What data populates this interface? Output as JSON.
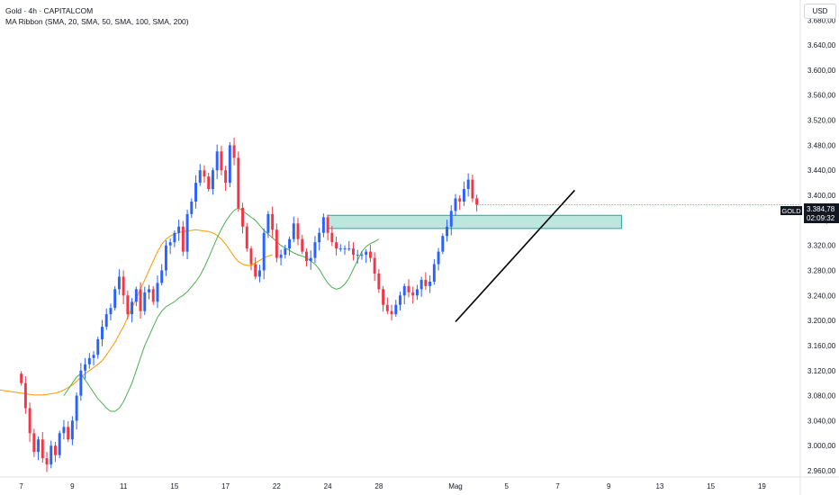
{
  "header": {
    "title": "Gold · 4h · CAPITALCOM",
    "indicator": "MA Ribbon (SMA, 20, SMA, 50, SMA, 100, SMA, 200)",
    "currency": "USD"
  },
  "price_tag": {
    "symbol": "GOLD",
    "price": "3.384,78",
    "countdown": "02:09:32"
  },
  "colors": {
    "up": "#2962ff",
    "down": "#f23645",
    "ma_fast": "#4caf50",
    "ma_slow": "#ff9800",
    "zone_fill": "#a5dfd3",
    "zone_border": "#26a69a",
    "trendline": "#000000"
  },
  "chart_data": {
    "type": "candlestick",
    "title": "Gold · 4h · CAPITALCOM",
    "y_ticks": [
      "3.680,00",
      "3.640,00",
      "3.600,00",
      "3.560,00",
      "3.520,00",
      "3.480,00",
      "3.440,00",
      "3.400,00",
      "3.360,00",
      "3.320,00",
      "3.280,00",
      "3.240,00",
      "3.200,00",
      "3.160,00",
      "3.120,00",
      "3.080,00",
      "3.040,00",
      "3.000,00",
      "2.960,00"
    ],
    "y_tick_values": [
      3680,
      3640,
      3600,
      3560,
      3520,
      3480,
      3440,
      3400,
      3360,
      3320,
      3280,
      3240,
      3200,
      3160,
      3120,
      3080,
      3040,
      3000,
      2960
    ],
    "ylim": [
      2950,
      3712
    ],
    "x_ticks": [
      "7",
      "9",
      "11",
      "15",
      "17",
      "22",
      "24",
      "28",
      "Mag",
      "5",
      "7",
      "9",
      "13",
      "15",
      "19"
    ],
    "x_tick_index": [
      0,
      12,
      24,
      36,
      48,
      60,
      72,
      84,
      102,
      114,
      126,
      138,
      150,
      162,
      174
    ],
    "x_range": [
      -5,
      183
    ],
    "closes": [
      3100,
      3060,
      3020,
      2990,
      3010,
      2980,
      2970,
      3000,
      2985,
      3020,
      3030,
      3010,
      3040,
      3080,
      3120,
      3130,
      3140,
      3145,
      3170,
      3190,
      3210,
      3220,
      3250,
      3270,
      3240,
      3210,
      3230,
      3250,
      3215,
      3245,
      3250,
      3230,
      3260,
      3280,
      3320,
      3325,
      3340,
      3350,
      3310,
      3370,
      3390,
      3420,
      3440,
      3430,
      3410,
      3440,
      3470,
      3440,
      3420,
      3480,
      3460,
      3380,
      3350,
      3315,
      3290,
      3270,
      3280,
      3340,
      3370,
      3345,
      3300,
      3305,
      3315,
      3330,
      3355,
      3330,
      3310,
      3295,
      3300,
      3325,
      3340,
      3365,
      3340,
      3325,
      3315,
      3315,
      3315,
      3315,
      3305,
      3305,
      3305,
      3310,
      3300,
      3275,
      3250,
      3225,
      3215,
      3210,
      3225,
      3240,
      3255,
      3245,
      3240,
      3250,
      3265,
      3255,
      3262,
      3290,
      3310,
      3335,
      3350,
      3375,
      3395,
      3390,
      3410,
      3425,
      3395,
      3385
    ],
    "ma_fast": [
      3080,
      3090,
      3100,
      3110,
      3115,
      3105,
      3095,
      3085,
      3075,
      3068,
      3060,
      3055,
      3055,
      3060,
      3070,
      3085,
      3100,
      3120,
      3140,
      3160,
      3175,
      3190,
      3205,
      3215,
      3222,
      3226,
      3230,
      3236,
      3240,
      3246,
      3254,
      3262,
      3272,
      3285,
      3300,
      3316,
      3332,
      3346,
      3358,
      3368,
      3376,
      3380,
      3375,
      3370,
      3365,
      3360,
      3352,
      3344,
      3338,
      3332,
      3326,
      3320,
      3316,
      3312,
      3308,
      3305,
      3303,
      3300,
      3295,
      3290,
      3282,
      3270,
      3260,
      3253,
      3250,
      3252,
      3258,
      3268,
      3282,
      3296,
      3310,
      3318,
      3323,
      3326,
      3330
    ],
    "ma_fast_start": 10,
    "ma_slow": [
      3093,
      3093,
      3092,
      3091,
      3090,
      3089,
      3088,
      3087,
      3086,
      3085,
      3084,
      3083,
      3082,
      3081,
      3081,
      3081,
      3082,
      3083,
      3084,
      3086,
      3089,
      3093,
      3097,
      3103,
      3109,
      3115,
      3120,
      3125,
      3130,
      3136,
      3145,
      3155,
      3165,
      3178,
      3190,
      3205,
      3220,
      3235,
      3250,
      3265,
      3280,
      3295,
      3310,
      3322,
      3330,
      3335,
      3338,
      3340,
      3342,
      3343,
      3344,
      3345,
      3344,
      3343,
      3342,
      3340,
      3336,
      3330,
      3322,
      3312,
      3302,
      3294,
      3290,
      3288,
      3288,
      3292,
      3296,
      3300,
      3303,
      3305
    ],
    "ma_slow_start": -10,
    "zone": {
      "from_index": 72,
      "to_index": 141,
      "low": 3347,
      "high": 3368
    },
    "trendline": {
      "from_index": 102,
      "from_value": 3198,
      "to_index": 130,
      "to_value": 3408
    }
  }
}
